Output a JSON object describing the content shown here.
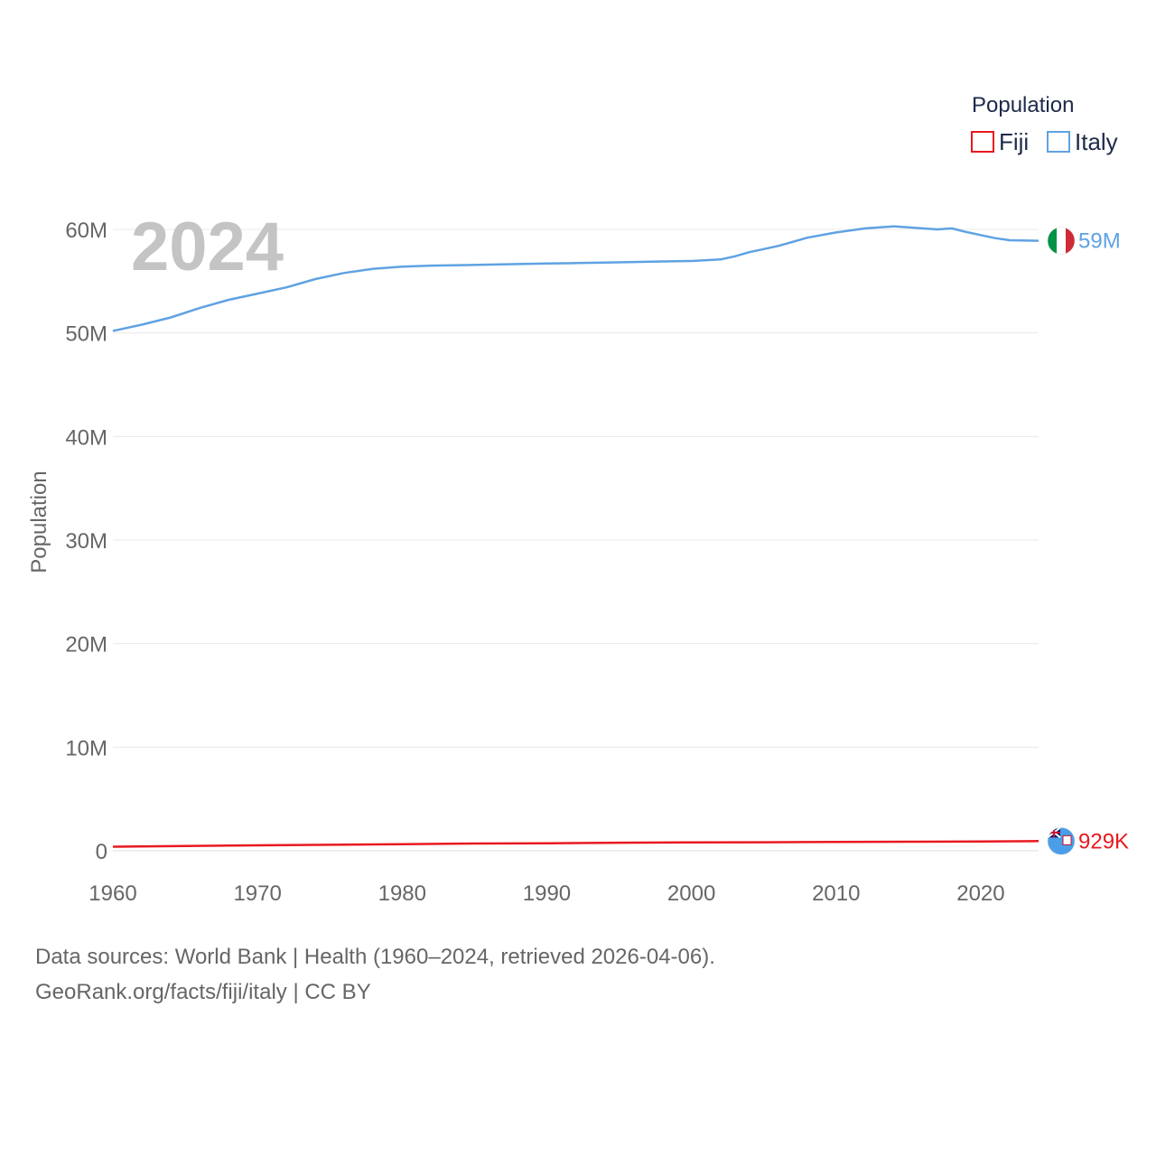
{
  "chart_data": {
    "type": "line",
    "title": "",
    "year_overlay": "2024",
    "ylabel": "Population",
    "xlabel": "",
    "xlim": [
      1960,
      2024
    ],
    "ylim": [
      0,
      62000000
    ],
    "y_ticks": [
      {
        "value": 0,
        "label": "0"
      },
      {
        "value": 10000000,
        "label": "10M"
      },
      {
        "value": 20000000,
        "label": "20M"
      },
      {
        "value": 30000000,
        "label": "30M"
      },
      {
        "value": 40000000,
        "label": "40M"
      },
      {
        "value": 50000000,
        "label": "50M"
      },
      {
        "value": 60000000,
        "label": "60M"
      }
    ],
    "x_ticks": [
      {
        "value": 1960,
        "label": "1960"
      },
      {
        "value": 1970,
        "label": "1970"
      },
      {
        "value": 1980,
        "label": "1980"
      },
      {
        "value": 1990,
        "label": "1990"
      },
      {
        "value": 2000,
        "label": "2000"
      },
      {
        "value": 2010,
        "label": "2010"
      },
      {
        "value": 2020,
        "label": "2020"
      }
    ],
    "legend": {
      "title": "Population",
      "position": "top-right"
    },
    "series": [
      {
        "name": "Fiji",
        "color": "#e8191f",
        "end_label": "929K",
        "flag": "fiji-flag",
        "x": [
          1960,
          1965,
          1970,
          1975,
          1980,
          1985,
          1990,
          1995,
          2000,
          2005,
          2010,
          2015,
          2020,
          2024
        ],
        "values": [
          393000,
          463000,
          520000,
          578000,
          635000,
          700000,
          728000,
          775000,
          811000,
          822000,
          859000,
          869000,
          896000,
          929000
        ]
      },
      {
        "name": "Italy",
        "color": "#5fa2e3",
        "end_label": "59M",
        "flag": "italy-flag",
        "x": [
          1960,
          1962,
          1964,
          1966,
          1968,
          1970,
          1972,
          1974,
          1976,
          1978,
          1980,
          1982,
          1984,
          1986,
          1988,
          1990,
          1992,
          1994,
          1996,
          1998,
          2000,
          2002,
          2003,
          2004,
          2005,
          2006,
          2007,
          2008,
          2010,
          2012,
          2013,
          2014,
          2016,
          2017,
          2018,
          2019,
          2020,
          2021,
          2022,
          2024
        ],
        "values": [
          50200000,
          50800000,
          51500000,
          52400000,
          53200000,
          53800000,
          54400000,
          55200000,
          55800000,
          56200000,
          56400000,
          56500000,
          56550000,
          56600000,
          56650000,
          56700000,
          56750000,
          56800000,
          56850000,
          56900000,
          56950000,
          57100000,
          57400000,
          57800000,
          58100000,
          58400000,
          58800000,
          59200000,
          59700000,
          60100000,
          60200000,
          60300000,
          60100000,
          60000000,
          60100000,
          59750000,
          59450000,
          59150000,
          58950000,
          58900000
        ]
      }
    ]
  },
  "footer": {
    "source_line": "Data sources: World Bank | Health (1960–2024, retrieved 2026-04-06).",
    "credit_line": "GeoRank.org/facts/fiji/italy | CC BY"
  }
}
